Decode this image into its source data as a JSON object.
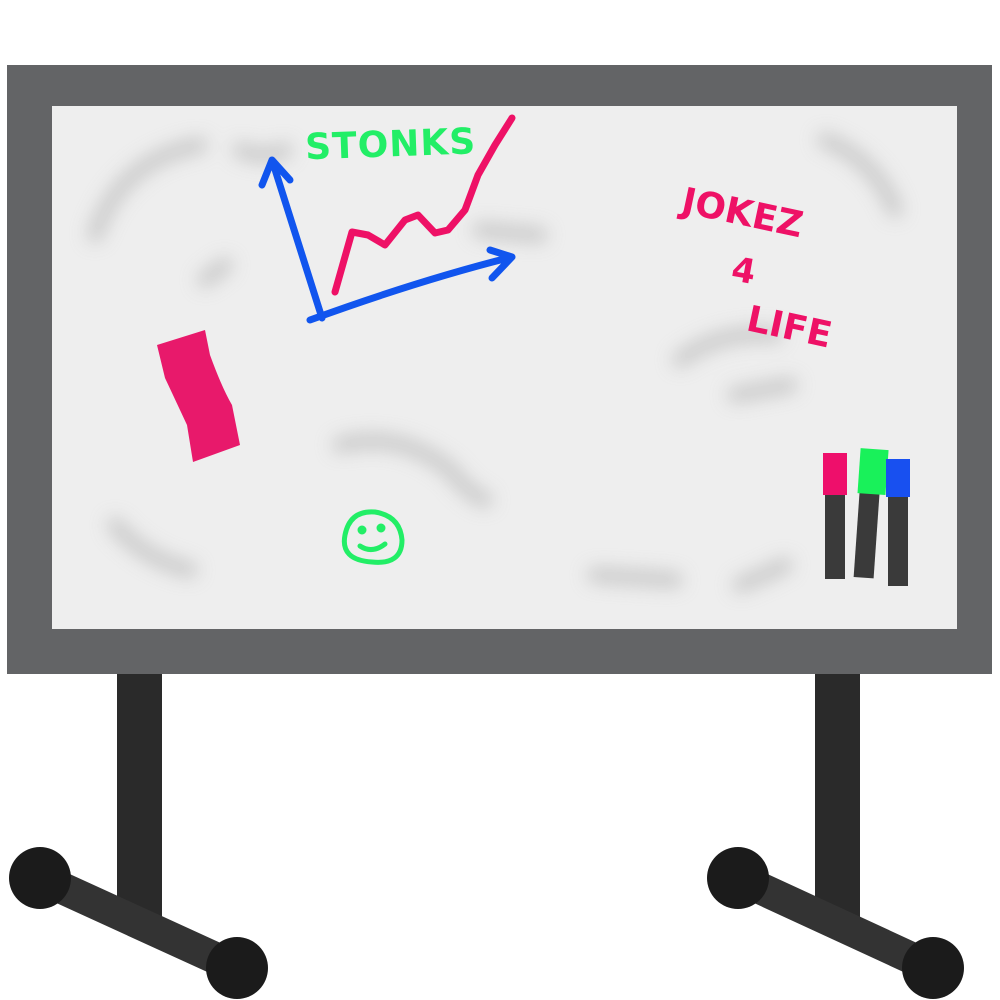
{
  "board": {
    "frame_color": "#636466",
    "surface_color": "#eeeeee",
    "stand_color": "#2a2a2a",
    "wheel_color": "#1b1b1b"
  },
  "drawings": {
    "stonks_label": "STONKS",
    "stonks_color": "#22ee66",
    "axes_color": "#1155ee",
    "trend_color": "#ee1166",
    "joke_lines": [
      "JOKEZ",
      "4",
      "LIFE"
    ],
    "joke_color": "#ee1166",
    "smiley_color": "#22ee66"
  },
  "items": {
    "eraser_color": "#e8196b",
    "markers": [
      {
        "name": "pink-marker",
        "cap_color": "#ee0f6b"
      },
      {
        "name": "green-marker",
        "cap_color": "#19f15a"
      },
      {
        "name": "blue-marker",
        "cap_color": "#1850f0"
      }
    ],
    "marker_body_color": "#3a3a3a"
  }
}
